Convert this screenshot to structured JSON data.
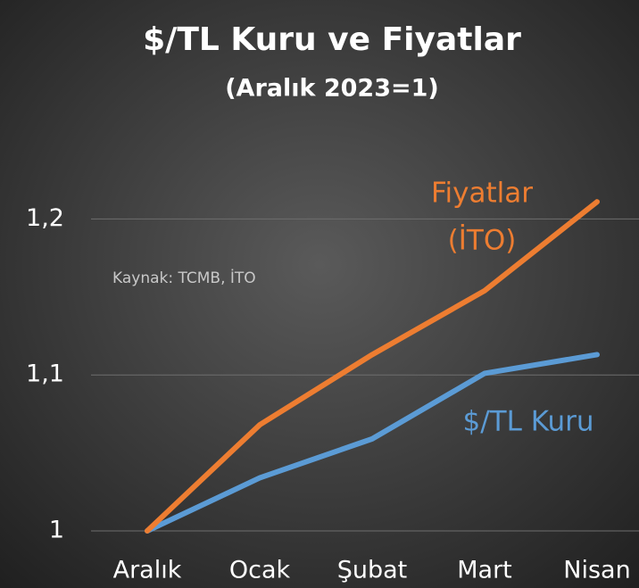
{
  "chart_data": {
    "type": "line",
    "title": "$/TL Kuru ve Fiyatlar",
    "subtitle": "(Aralık 2023=1)",
    "annotation": "Kaynak: TCMB, İTO",
    "categories": [
      "Aralık",
      "Ocak",
      "Şubat",
      "Mart",
      "Nisan"
    ],
    "series": [
      {
        "name": "Fiyatlar",
        "name_suffix": "(İTO)",
        "color": "#ed7d31",
        "values": [
          1,
          1.068,
          1.113,
          1.154,
          1.211
        ]
      },
      {
        "name": "$/TL Kuru",
        "color": "#5b9bd5",
        "values": [
          1,
          1.034,
          1.059,
          1.101,
          1.113
        ]
      }
    ],
    "ylim": [
      1,
      1.25
    ],
    "yticks": [
      1,
      {
        "value": 1.1,
        "label": "1,1"
      },
      {
        "value": 1.2,
        "label": "1,2"
      }
    ],
    "grid": true
  }
}
